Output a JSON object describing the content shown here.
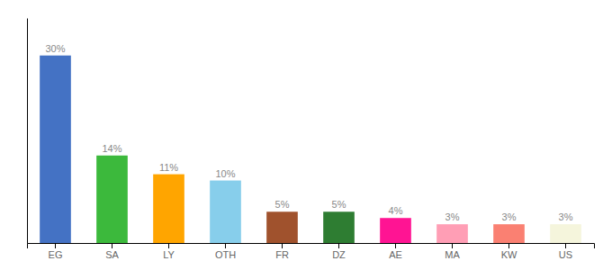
{
  "chart_data": {
    "type": "bar",
    "categories": [
      "EG",
      "SA",
      "LY",
      "OTH",
      "FR",
      "DZ",
      "AE",
      "MA",
      "KW",
      "US"
    ],
    "values": [
      30,
      14,
      11,
      10,
      5,
      5,
      4,
      3,
      3,
      3
    ],
    "value_labels": [
      "30%",
      "14%",
      "11%",
      "10%",
      "5%",
      "5%",
      "4%",
      "3%",
      "3%",
      "3%"
    ],
    "colors": [
      "#4472C4",
      "#3CB93C",
      "#FFA500",
      "#87CEEB",
      "#A0522D",
      "#2E7D32",
      "#FF1493",
      "#FF9EB5",
      "#FA8072",
      "#F5F5DC"
    ],
    "ylim": [
      0,
      36
    ],
    "data_labels": true,
    "grid": false,
    "tick_labels": "x"
  }
}
